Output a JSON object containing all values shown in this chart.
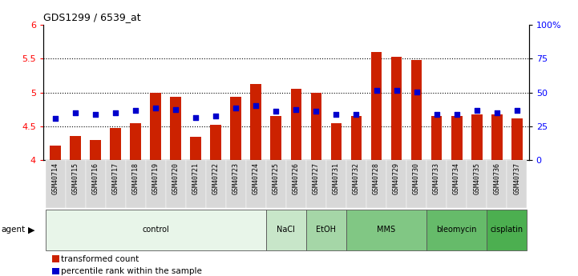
{
  "title": "GDS1299 / 6539_at",
  "samples": [
    "GSM40714",
    "GSM40715",
    "GSM40716",
    "GSM40717",
    "GSM40718",
    "GSM40719",
    "GSM40720",
    "GSM40721",
    "GSM40722",
    "GSM40723",
    "GSM40724",
    "GSM40725",
    "GSM40726",
    "GSM40727",
    "GSM40731",
    "GSM40732",
    "GSM40728",
    "GSM40729",
    "GSM40730",
    "GSM40733",
    "GSM40734",
    "GSM40735",
    "GSM40736",
    "GSM40737"
  ],
  "bar_values": [
    4.22,
    4.36,
    4.3,
    4.47,
    4.55,
    5.0,
    4.93,
    4.35,
    4.52,
    4.93,
    5.12,
    4.65,
    5.05,
    5.0,
    4.55,
    4.65,
    5.6,
    5.53,
    5.48,
    4.65,
    4.65,
    4.68,
    4.67,
    4.62
  ],
  "percentile_values": [
    4.62,
    4.7,
    4.68,
    4.7,
    4.73,
    4.77,
    4.75,
    4.63,
    4.65,
    4.77,
    4.8,
    4.72,
    4.75,
    4.72,
    4.68,
    4.68,
    5.03,
    5.03,
    5.01,
    4.68,
    4.68,
    4.73,
    4.7,
    4.73
  ],
  "agent_groups": [
    {
      "label": "control",
      "start": 0,
      "end": 10,
      "color": "#e8f5e9"
    },
    {
      "label": "NaCl",
      "start": 11,
      "end": 12,
      "color": "#c8e6c9"
    },
    {
      "label": "EtOH",
      "start": 13,
      "end": 14,
      "color": "#a5d6a7"
    },
    {
      "label": "MMS",
      "start": 15,
      "end": 18,
      "color": "#81c784"
    },
    {
      "label": "bleomycin",
      "start": 19,
      "end": 21,
      "color": "#66bb6a"
    },
    {
      "label": "cisplatin",
      "start": 22,
      "end": 23,
      "color": "#4caf50"
    }
  ],
  "bar_color": "#cc2200",
  "percentile_color": "#0000cc",
  "bar_bottom": 4.0,
  "ylim_left": [
    4.0,
    6.0
  ],
  "ylim_right": [
    0,
    100
  ],
  "yticks_left": [
    4.0,
    4.5,
    5.0,
    5.5,
    6.0
  ],
  "ytick_labels_left": [
    "4",
    "4.5",
    "5",
    "5.5",
    "6"
  ],
  "yticks_right": [
    0,
    25,
    50,
    75,
    100
  ],
  "ytick_labels_right": [
    "0",
    "25",
    "50",
    "75",
    "100%"
  ],
  "hlines": [
    4.5,
    5.0,
    5.5
  ],
  "legend_items": [
    {
      "label": "transformed count",
      "color": "#cc2200"
    },
    {
      "label": "percentile rank within the sample",
      "color": "#0000cc"
    }
  ]
}
